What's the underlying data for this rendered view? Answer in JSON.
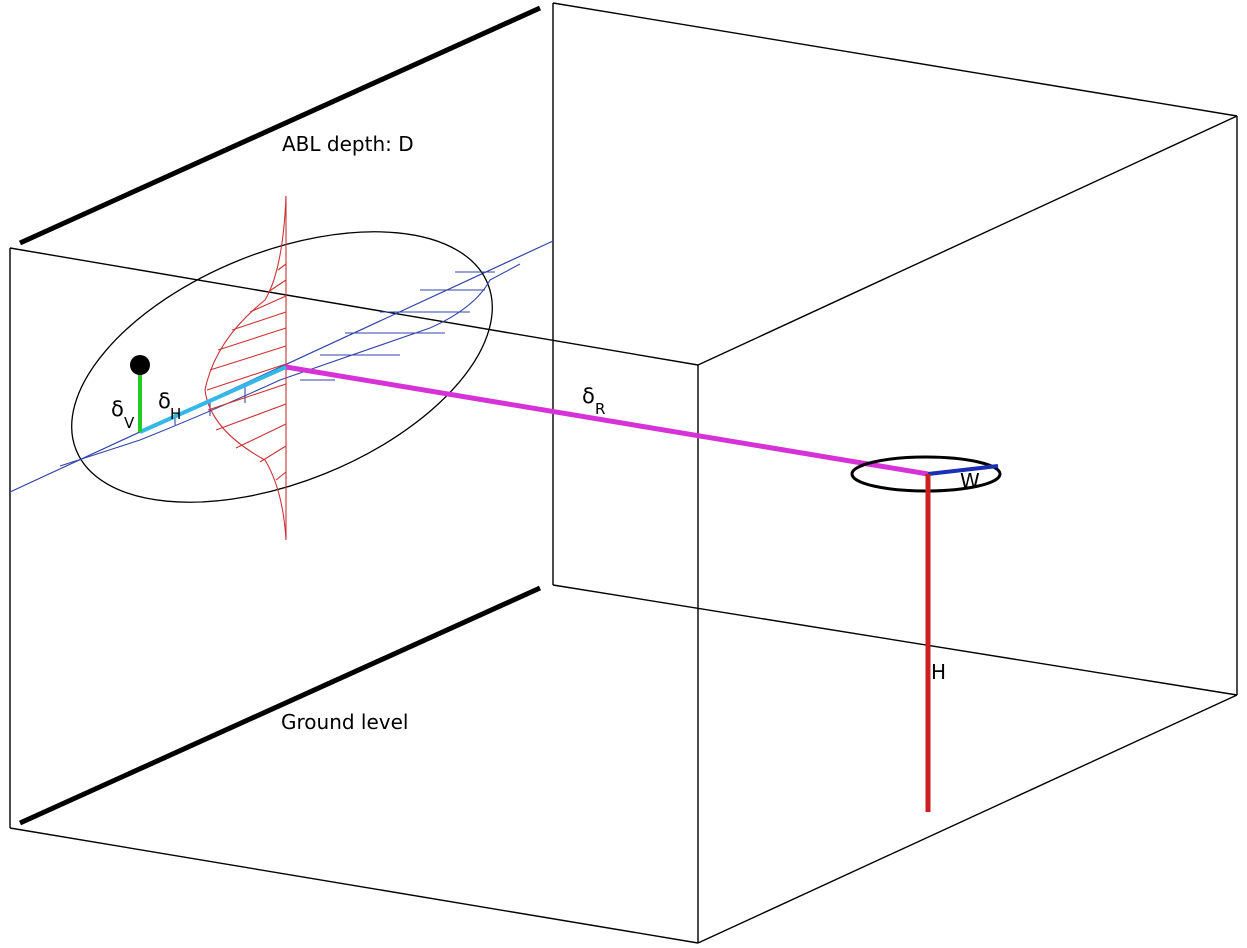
{
  "labels": {
    "abl_depth": "ABL depth: D",
    "ground_level": "Ground level",
    "delta_symbol": "δ",
    "sub_v": "V",
    "sub_h": "H",
    "sub_r": "R",
    "w": "W",
    "h": "H"
  },
  "colors": {
    "box_edges": "#000000",
    "receptor_dot": "#000000",
    "delta_v": "#22cc22",
    "delta_h": "#33b8e8",
    "delta_r": "#d633d6",
    "w_segment": "#1a2fb3",
    "h_stack": "#cc1f1f",
    "vertical_profile": "#cc3333",
    "horizontal_profile": "#3344aa",
    "plume_ellipse": "#000000"
  }
}
